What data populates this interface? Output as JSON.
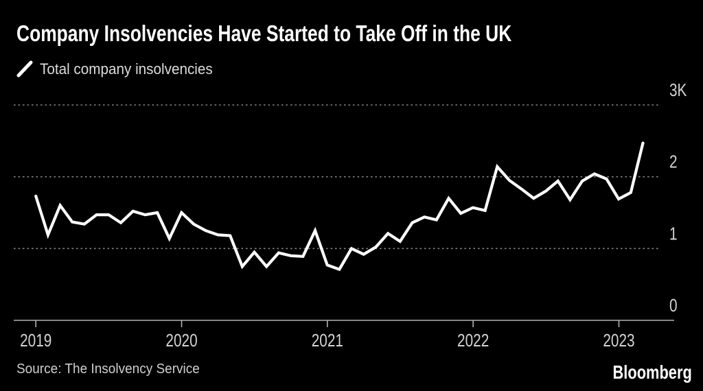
{
  "header": {
    "title": "Company Insolvencies Have Started to Take Off in the UK",
    "legend": {
      "icon": "line-stroke-icon",
      "label": "Total company insolvencies"
    }
  },
  "footer": {
    "source": "Source: The Insolvency Service",
    "brand": "Bloomberg"
  },
  "colors": {
    "background": "#000000",
    "series_line": "#ffffff",
    "gridline": "#848484",
    "axis_line": "#b3b3b3",
    "tick_label": "#d4d4d4",
    "legend_text": "#dcdcdc",
    "source_text": "#cfcfcf"
  },
  "chart_data": {
    "type": "line",
    "title": "Company Insolvencies Have Started to Take Off in the UK",
    "series_name": "Total company insolvencies",
    "unit": "thousands of insolvencies per month",
    "frequency": "monthly",
    "x_start": "2019-01",
    "x_end": "2023-03",
    "x_tick_labels": [
      "2019",
      "2020",
      "2021",
      "2022",
      "2023"
    ],
    "y_tick_labels": [
      "3K",
      "2",
      "1",
      "0"
    ],
    "y_tick_values": [
      3,
      2,
      1,
      0
    ],
    "ylim": [
      0,
      3
    ],
    "grid": "horizontal-dotted",
    "legend_position": "top-left",
    "values_thousands": [
      1.73,
      1.19,
      1.6,
      1.37,
      1.34,
      1.47,
      1.47,
      1.36,
      1.52,
      1.47,
      1.5,
      1.14,
      1.5,
      1.34,
      1.25,
      1.19,
      1.18,
      0.75,
      0.95,
      0.75,
      0.94,
      0.9,
      0.89,
      1.25,
      0.77,
      0.71,
      1.0,
      0.92,
      1.02,
      1.21,
      1.1,
      1.36,
      1.44,
      1.4,
      1.7,
      1.49,
      1.57,
      1.53,
      2.14,
      1.95,
      1.83,
      1.7,
      1.8,
      1.94,
      1.68,
      1.94,
      2.04,
      1.97,
      1.69,
      1.78,
      2.47
    ]
  }
}
